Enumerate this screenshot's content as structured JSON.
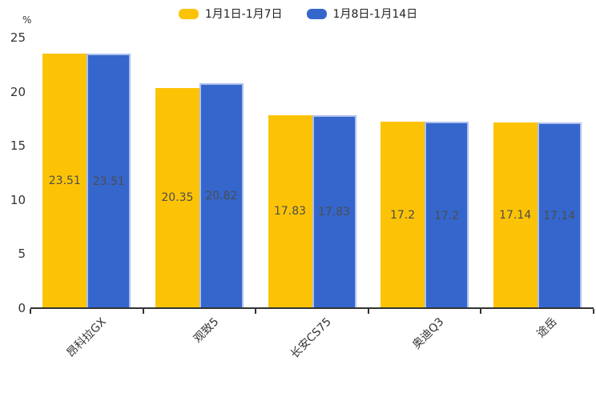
{
  "chart_data": {
    "type": "bar",
    "title": "",
    "unit_label": "%",
    "categories": [
      "昂科拉GX",
      "观致5",
      "长安CS75",
      "奥迪Q3",
      "途岳"
    ],
    "series": [
      {
        "name": "1月1日-1月7日",
        "color": "#fcc306",
        "values": [
          23.51,
          20.35,
          17.83,
          17.2,
          17.14
        ]
      },
      {
        "name": "1月8日-1月14日",
        "color": "#3566cc",
        "values": [
          23.51,
          20.82,
          17.83,
          17.2,
          17.14
        ]
      }
    ],
    "ylim": [
      0,
      25
    ],
    "yticks": [
      0,
      5,
      10,
      15,
      20,
      25
    ],
    "grid": false,
    "legend_position": "top",
    "value_labels_inside_bars": true,
    "colors": {
      "series1_border": "#aec0ed",
      "axis": "#333333",
      "text": "#333333",
      "value_text": "#4d4d4d"
    }
  }
}
